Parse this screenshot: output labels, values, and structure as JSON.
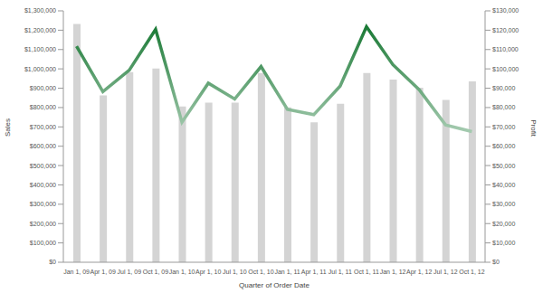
{
  "chart_data": {
    "type": "bar_line",
    "x_label": "Quarter of Order Date",
    "y_label": "Sales",
    "y2_label": "Profit",
    "categories": [
      "Jan 1, 09",
      "Apr 1, 09",
      "Jul 1, 09",
      "Oct 1, 09",
      "Jan 1, 10",
      "Apr 1, 10",
      "Jul 1, 10",
      "Oct 1, 10",
      "Jan 1, 11",
      "Apr 1, 11",
      "Jul 1, 11",
      "Oct 1, 11",
      "Jan 1, 12",
      "Apr 1, 12",
      "Jul 1, 12",
      "Oct 1, 12"
    ],
    "series": [
      {
        "name": "Sales",
        "type": "bar",
        "color": "#d4d4d4",
        "values": [
          1232000,
          863000,
          983000,
          1002000,
          806000,
          825000,
          825000,
          978000,
          801000,
          724000,
          820000,
          978000,
          945000,
          902000,
          839000,
          935000
        ]
      },
      {
        "name": "Profit",
        "type": "line",
        "axis": "y2",
        "color": "#1b7a36",
        "values": [
          111700,
          88200,
          99300,
          120400,
          72400,
          92600,
          84400,
          101200,
          79100,
          76300,
          91100,
          121800,
          102200,
          89200,
          71000,
          67600
        ]
      }
    ],
    "ylim": [
      0,
      1300000
    ],
    "yticks": [
      {
        "value": 0,
        "label": "$0"
      },
      {
        "value": 100000,
        "label": "$100,000"
      },
      {
        "value": 200000,
        "label": "$200,000"
      },
      {
        "value": 300000,
        "label": "$300,000"
      },
      {
        "value": 400000,
        "label": "$400,000"
      },
      {
        "value": 500000,
        "label": "$500,000"
      },
      {
        "value": 600000,
        "label": "$600,000"
      },
      {
        "value": 700000,
        "label": "$700,000"
      },
      {
        "value": 800000,
        "label": "$800,000"
      },
      {
        "value": 900000,
        "label": "$900,000"
      },
      {
        "value": 1000000,
        "label": "$1,000,000"
      },
      {
        "value": 1100000,
        "label": "$1,100,000"
      },
      {
        "value": 1200000,
        "label": "$1,200,000"
      },
      {
        "value": 1300000,
        "label": "$1,300,000"
      }
    ],
    "y2lim": [
      0,
      130000
    ],
    "y2ticks": [
      {
        "value": 0,
        "label": "$0"
      },
      {
        "value": 10000,
        "label": "$10,000"
      },
      {
        "value": 20000,
        "label": "$20,000"
      },
      {
        "value": 30000,
        "label": "$30,000"
      },
      {
        "value": 40000,
        "label": "$40,000"
      },
      {
        "value": 50000,
        "label": "$50,000"
      },
      {
        "value": 60000,
        "label": "$60,000"
      },
      {
        "value": 70000,
        "label": "$70,000"
      },
      {
        "value": 80000,
        "label": "$80,000"
      },
      {
        "value": 90000,
        "label": "$90,000"
      },
      {
        "value": 100000,
        "label": "$100,000"
      },
      {
        "value": 110000,
        "label": "$110,000"
      },
      {
        "value": 120000,
        "label": "$120,000"
      },
      {
        "value": 130000,
        "label": "$130,000"
      }
    ],
    "grid": false
  }
}
